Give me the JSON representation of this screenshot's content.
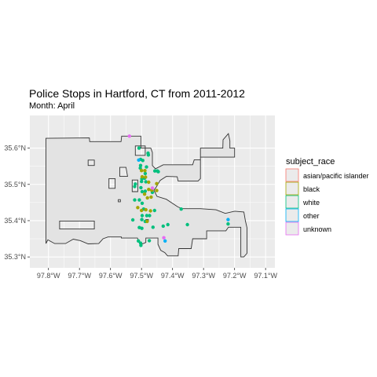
{
  "chart_data": {
    "type": "scatter",
    "title": "Police Stops in Hartford, CT from 2011-2012",
    "subtitle": "Month: April",
    "xlabel": "",
    "ylabel": "",
    "xlim": [
      -97.86,
      -97.07
    ],
    "ylim": [
      35.27,
      35.69
    ],
    "x_ticks": [
      {
        "value": -97.8,
        "label": "97.8°W"
      },
      {
        "value": -97.7,
        "label": "97.7°W"
      },
      {
        "value": -97.6,
        "label": "97.6°W"
      },
      {
        "value": -97.5,
        "label": "97.5°W"
      },
      {
        "value": -97.4,
        "label": "97.4°W"
      },
      {
        "value": -97.3,
        "label": "97.3°W"
      },
      {
        "value": -97.2,
        "label": "97.2°W"
      },
      {
        "value": -97.1,
        "label": "97.1°W"
      }
    ],
    "y_ticks": [
      {
        "value": 35.3,
        "label": "35.3°N"
      },
      {
        "value": 35.4,
        "label": "35.4°N"
      },
      {
        "value": 35.5,
        "label": "35.5°N"
      },
      {
        "value": 35.6,
        "label": "35.6°N"
      }
    ],
    "grid": true,
    "legend": {
      "title": "subject_race",
      "placement": "right",
      "entries": [
        {
          "label": "asian/pacific islander",
          "color": "#F8766D"
        },
        {
          "label": "black",
          "color": "#A3A500"
        },
        {
          "label": "white",
          "color": "#00BF7D"
        },
        {
          "label": "other",
          "color": "#00B0F6"
        },
        {
          "label": "unknown",
          "color": "#E76BF3"
        }
      ]
    },
    "boundary": [
      [
        -97.808,
        35.627
      ],
      [
        -97.668,
        35.628
      ],
      [
        -97.667,
        35.618
      ],
      [
        -97.566,
        35.618
      ],
      [
        -97.564,
        35.633
      ],
      [
        -97.502,
        35.633
      ],
      [
        -97.502,
        35.6
      ],
      [
        -97.47,
        35.6
      ],
      [
        -97.465,
        35.588
      ],
      [
        -97.465,
        35.552
      ],
      [
        -97.455,
        35.543
      ],
      [
        -97.43,
        35.554
      ],
      [
        -97.335,
        35.554
      ],
      [
        -97.33,
        35.568
      ],
      [
        -97.31,
        35.568
      ],
      [
        -97.31,
        35.6
      ],
      [
        -97.238,
        35.6
      ],
      [
        -97.237,
        35.623
      ],
      [
        -97.22,
        35.64
      ],
      [
        -97.215,
        35.62
      ],
      [
        -97.215,
        35.6
      ],
      [
        -97.2,
        35.6
      ],
      [
        -97.2,
        35.575
      ],
      [
        -97.31,
        35.575
      ],
      [
        -97.31,
        35.516
      ],
      [
        -97.318,
        35.509
      ],
      [
        -97.382,
        35.509
      ],
      [
        -97.385,
        35.521
      ],
      [
        -97.42,
        35.522
      ],
      [
        -97.44,
        35.511
      ],
      [
        -97.452,
        35.493
      ],
      [
        -97.46,
        35.484
      ],
      [
        -97.45,
        35.467
      ],
      [
        -97.42,
        35.459
      ],
      [
        -97.383,
        35.438
      ],
      [
        -97.37,
        35.433
      ],
      [
        -97.31,
        35.433
      ],
      [
        -97.26,
        35.43
      ],
      [
        -97.23,
        35.42
      ],
      [
        -97.2,
        35.426
      ],
      [
        -97.17,
        35.424
      ],
      [
        -97.165,
        35.399
      ],
      [
        -97.16,
        35.38
      ],
      [
        -97.16,
        35.31
      ],
      [
        -97.17,
        35.3
      ],
      [
        -97.18,
        35.3
      ],
      [
        -97.18,
        35.382
      ],
      [
        -97.22,
        35.382
      ],
      [
        -97.228,
        35.372
      ],
      [
        -97.29,
        35.372
      ],
      [
        -97.29,
        35.35
      ],
      [
        -97.335,
        35.35
      ],
      [
        -97.34,
        35.323
      ],
      [
        -97.38,
        35.323
      ],
      [
        -97.382,
        35.303
      ],
      [
        -97.416,
        35.303
      ],
      [
        -97.425,
        35.312
      ],
      [
        -97.438,
        35.318
      ],
      [
        -97.447,
        35.335
      ],
      [
        -97.447,
        35.352
      ],
      [
        -97.486,
        35.352
      ],
      [
        -97.486,
        35.34
      ],
      [
        -97.497,
        35.336
      ],
      [
        -97.508,
        35.34
      ],
      [
        -97.513,
        35.352
      ],
      [
        -97.565,
        35.352
      ],
      [
        -97.565,
        35.355
      ],
      [
        -97.608,
        35.355
      ],
      [
        -97.624,
        35.35
      ],
      [
        -97.638,
        35.337
      ],
      [
        -97.672,
        35.336
      ],
      [
        -97.697,
        35.345
      ],
      [
        -97.72,
        35.349
      ],
      [
        -97.745,
        35.337
      ],
      [
        -97.78,
        35.337
      ],
      [
        -97.802,
        35.347
      ],
      [
        -97.808,
        35.337
      ],
      [
        -97.808,
        35.627
      ]
    ],
    "holes": [
      [
        [
          -97.764,
          35.399
        ],
        [
          -97.652,
          35.399
        ],
        [
          -97.652,
          35.377
        ],
        [
          -97.764,
          35.377
        ],
        [
          -97.764,
          35.399
        ]
      ],
      [
        [
          -97.52,
          35.606
        ],
        [
          -97.488,
          35.606
        ],
        [
          -97.488,
          35.58
        ],
        [
          -97.52,
          35.58
        ],
        [
          -97.52,
          35.606
        ]
      ],
      [
        [
          -97.57,
          35.547
        ],
        [
          -97.55,
          35.547
        ],
        [
          -97.545,
          35.522
        ],
        [
          -97.57,
          35.522
        ],
        [
          -97.57,
          35.547
        ]
      ],
      [
        [
          -97.605,
          35.516
        ],
        [
          -97.585,
          35.516
        ],
        [
          -97.585,
          35.489
        ],
        [
          -97.605,
          35.489
        ],
        [
          -97.605,
          35.516
        ]
      ],
      [
        [
          -97.53,
          35.512
        ],
        [
          -97.512,
          35.512
        ],
        [
          -97.512,
          35.48
        ],
        [
          -97.53,
          35.48
        ],
        [
          -97.53,
          35.512
        ]
      ],
      [
        [
          -97.672,
          35.567
        ],
        [
          -97.652,
          35.567
        ],
        [
          -97.652,
          35.552
        ],
        [
          -97.672,
          35.552
        ],
        [
          -97.672,
          35.567
        ]
      ],
      [
        [
          -97.575,
          35.458
        ],
        [
          -97.568,
          35.458
        ],
        [
          -97.568,
          35.452
        ],
        [
          -97.575,
          35.452
        ],
        [
          -97.575,
          35.458
        ]
      ],
      [
        [
          -97.486,
          35.403
        ],
        [
          -97.478,
          35.403
        ],
        [
          -97.478,
          35.397
        ],
        [
          -97.486,
          35.397
        ],
        [
          -97.486,
          35.403
        ]
      ]
    ],
    "series": [
      {
        "name": "white",
        "color": "#00BF7D",
        "points": [
          [
            -97.508,
            35.6
          ],
          [
            -97.479,
            35.586
          ],
          [
            -97.478,
            35.581
          ],
          [
            -97.503,
            35.569
          ],
          [
            -97.496,
            35.566
          ],
          [
            -97.503,
            35.552
          ],
          [
            -97.504,
            35.545
          ],
          [
            -97.484,
            35.548
          ],
          [
            -97.457,
            35.537
          ],
          [
            -97.449,
            35.537
          ],
          [
            -97.446,
            35.535
          ],
          [
            -97.488,
            35.53
          ],
          [
            -97.49,
            35.517
          ],
          [
            -97.499,
            35.515
          ],
          [
            -97.5,
            35.508
          ],
          [
            -97.486,
            35.507
          ],
          [
            -97.52,
            35.501
          ],
          [
            -97.522,
            35.494
          ],
          [
            -97.502,
            35.491
          ],
          [
            -97.498,
            35.48
          ],
          [
            -97.488,
            35.481
          ],
          [
            -97.465,
            35.478
          ],
          [
            -97.522,
            35.457
          ],
          [
            -97.507,
            35.457
          ],
          [
            -97.498,
            35.448
          ],
          [
            -97.493,
            35.432
          ],
          [
            -97.458,
            35.428
          ],
          [
            -97.498,
            35.414
          ],
          [
            -97.483,
            35.414
          ],
          [
            -97.474,
            35.414
          ],
          [
            -97.499,
            35.403
          ],
          [
            -97.488,
            35.398
          ],
          [
            -97.528,
            35.402
          ],
          [
            -97.507,
            35.381
          ],
          [
            -97.499,
            35.379
          ],
          [
            -97.463,
            35.382
          ],
          [
            -97.43,
            35.385
          ],
          [
            -97.415,
            35.389
          ],
          [
            -97.352,
            35.389
          ],
          [
            -97.221,
            35.391
          ],
          [
            -97.51,
            35.344
          ],
          [
            -97.503,
            35.338
          ],
          [
            -97.502,
            35.332
          ],
          [
            -97.475,
            35.345
          ],
          [
            -97.372,
            35.432
          ]
        ]
      },
      {
        "name": "black",
        "color": "#A3A500",
        "points": [
          [
            -97.5,
            35.538
          ],
          [
            -97.489,
            35.538
          ],
          [
            -97.498,
            35.521
          ],
          [
            -97.487,
            35.52
          ],
          [
            -97.477,
            35.506
          ],
          [
            -97.451,
            35.502
          ],
          [
            -97.477,
            35.486
          ],
          [
            -97.467,
            35.484
          ],
          [
            -97.451,
            35.483
          ],
          [
            -97.49,
            35.473
          ],
          [
            -97.481,
            35.463
          ],
          [
            -97.469,
            35.465
          ],
          [
            -97.512,
            35.436
          ],
          [
            -97.5,
            35.428
          ],
          [
            -97.486,
            35.43
          ],
          [
            -97.471,
            35.427
          ],
          [
            -97.482,
            35.398
          ]
        ]
      },
      {
        "name": "other",
        "color": "#00B0F6",
        "points": [
          [
            -97.509,
            35.567
          ],
          [
            -97.221,
            35.403
          ],
          [
            -97.424,
            35.344
          ]
        ]
      },
      {
        "name": "unknown",
        "color": "#E76BF3",
        "points": [
          [
            -97.539,
            35.633
          ],
          [
            -97.465,
            35.49
          ],
          [
            -97.428,
            35.353
          ]
        ]
      }
    ]
  }
}
